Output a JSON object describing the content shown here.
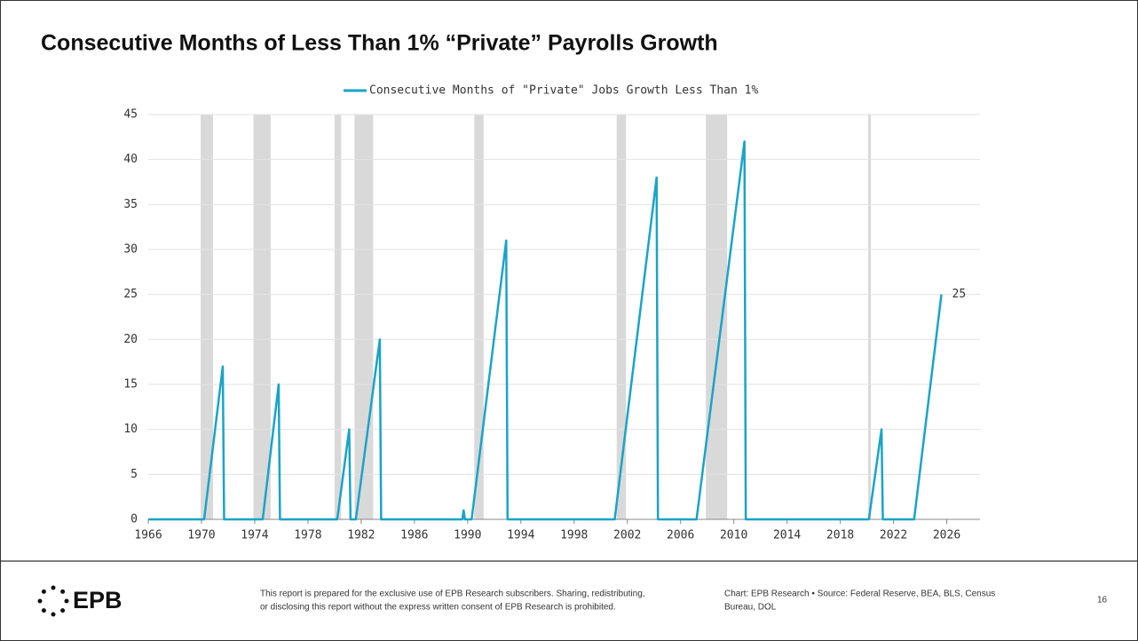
{
  "chart_data": {
    "type": "line",
    "title": "Consecutive Months of Less Than 1% “Private” Payrolls Growth",
    "x": [
      1966,
      1970.2,
      1971.6,
      1971.7,
      1974.6,
      1975.8,
      1975.9,
      1980.2,
      1981.1,
      1981.2,
      1981.6,
      1983.4,
      1983.5,
      1989.6,
      1989.7,
      1989.8,
      1990.3,
      1992.9,
      1993.0,
      2001.05,
      2004.2,
      2004.3,
      2007.2,
      2010.8,
      2010.9,
      2020.15,
      2021.1,
      2021.2,
      2023.55,
      2025.6
    ],
    "series": [
      {
        "name": "Consecutive Months of \"Private\" Jobs Growth Less Than 1%",
        "color": "#1aa3c8",
        "values": [
          0,
          0,
          17,
          0,
          0,
          15,
          0,
          0,
          10,
          0,
          0,
          20,
          0,
          0,
          1,
          0,
          0,
          31,
          0,
          0,
          38,
          0,
          0,
          42,
          0,
          0,
          10,
          0,
          0,
          25
        ]
      }
    ],
    "recessions": [
      [
        1969.94,
        1970.87
      ],
      [
        1973.9,
        1975.2
      ],
      [
        1980.0,
        1980.5
      ],
      [
        1981.5,
        1982.9
      ],
      [
        1990.5,
        1991.2
      ],
      [
        2001.2,
        2001.9
      ],
      [
        2007.9,
        2009.5
      ],
      [
        2020.1,
        2020.3
      ]
    ],
    "recession_color": "#d9d9d9",
    "xlim": [
      1966,
      2028.5
    ],
    "xticks": [
      1966,
      1970,
      1974,
      1978,
      1982,
      1986,
      1990,
      1994,
      1998,
      2002,
      2006,
      2010,
      2014,
      2018,
      2022,
      2026
    ],
    "ylim": [
      0,
      45
    ],
    "yticks": [
      0,
      5,
      10,
      15,
      20,
      25,
      30,
      35,
      40,
      45
    ],
    "grid": true,
    "legend": "top"
  },
  "footer": {
    "logo": "EPB",
    "disclaimer": [
      "This report is prepared for the exclusive use of EPB Research subscribers. Sharing, redistributing,",
      "or disclosing this report without the express written consent of EPB Research is prohibited."
    ],
    "source": [
      "Chart: EPB Research  •  Source: Federal Reserve, BEA, BLS, Census",
      "Bureau, DOL"
    ],
    "page": "16"
  }
}
